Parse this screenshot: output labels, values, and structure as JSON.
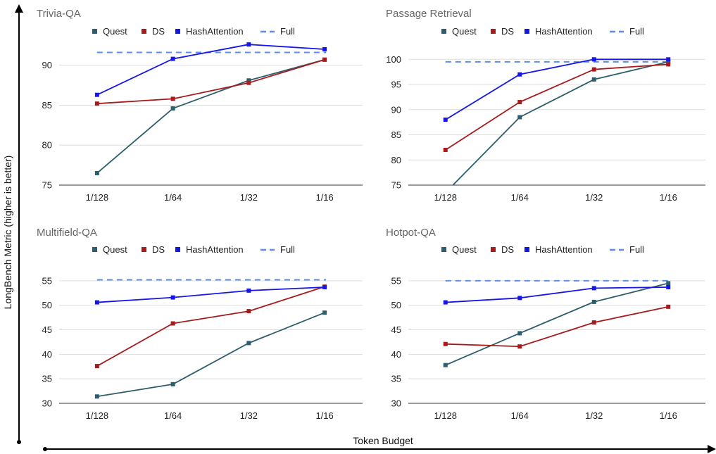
{
  "figure": {
    "ylabel": "LongBench Metric (higher is better)",
    "xlabel": "Token Budget"
  },
  "legend": [
    {
      "name": "Quest",
      "color": "#2e5e6e",
      "style": "solid"
    },
    {
      "name": "DS",
      "color": "#a61b1b",
      "style": "solid"
    },
    {
      "name": "HashAttention",
      "color": "#1616e8",
      "style": "solid"
    },
    {
      "name": "Full",
      "color": "#5b8ee6",
      "style": "dashed"
    }
  ],
  "chart_data": [
    {
      "type": "line",
      "title": "Trivia-QA",
      "categories": [
        "1/128",
        "1/64",
        "1/32",
        "1/16"
      ],
      "ylim": [
        75,
        92
      ],
      "yticks": [
        75,
        80,
        85,
        90
      ],
      "grid": true,
      "legend_position": "top",
      "series": [
        {
          "name": "Quest",
          "values": [
            76.5,
            84.6,
            88.1,
            90.7
          ]
        },
        {
          "name": "DS",
          "values": [
            85.2,
            85.8,
            87.8,
            90.7
          ]
        },
        {
          "name": "HashAttention",
          "values": [
            86.3,
            90.8,
            92.6,
            92.0
          ]
        },
        {
          "name": "Full",
          "values": [
            91.6,
            91.6,
            91.6,
            91.6
          ]
        }
      ]
    },
    {
      "type": "line",
      "title": "Passage Retrieval",
      "categories": [
        "1/128",
        "1/64",
        "1/32",
        "1/16"
      ],
      "ylim": [
        75,
        102
      ],
      "yticks": [
        75,
        80,
        85,
        90,
        95,
        100
      ],
      "grid": true,
      "legend_position": "top",
      "series": [
        {
          "name": "Quest",
          "values": [
            73.5,
            88.5,
            96.0,
            99.5
          ]
        },
        {
          "name": "DS",
          "values": [
            82.0,
            91.5,
            98.0,
            99.0
          ]
        },
        {
          "name": "HashAttention",
          "values": [
            88.0,
            97.0,
            100.0,
            100.0
          ]
        },
        {
          "name": "Full",
          "values": [
            99.5,
            99.5,
            99.5,
            99.5
          ]
        }
      ]
    },
    {
      "type": "line",
      "title": "Multifield-QA",
      "categories": [
        "1/128",
        "1/64",
        "1/32",
        "1/16"
      ],
      "ylim": [
        30,
        57
      ],
      "yticks": [
        30,
        35,
        40,
        45,
        50,
        55
      ],
      "grid": true,
      "legend_position": "top",
      "series": [
        {
          "name": "Quest",
          "values": [
            31.4,
            33.9,
            42.3,
            48.5
          ]
        },
        {
          "name": "DS",
          "values": [
            37.6,
            46.3,
            48.8,
            53.8
          ]
        },
        {
          "name": "HashAttention",
          "values": [
            50.6,
            51.6,
            53.0,
            53.7
          ]
        },
        {
          "name": "Full",
          "values": [
            55.2,
            55.2,
            55.2,
            55.2
          ]
        }
      ]
    },
    {
      "type": "line",
      "title": "Hotpot-QA",
      "categories": [
        "1/128",
        "1/64",
        "1/32",
        "1/16"
      ],
      "ylim": [
        30,
        57
      ],
      "yticks": [
        30,
        35,
        40,
        45,
        50,
        55
      ],
      "grid": true,
      "legend_position": "top",
      "series": [
        {
          "name": "Quest",
          "values": [
            37.8,
            44.3,
            50.7,
            54.5
          ]
        },
        {
          "name": "DS",
          "values": [
            42.1,
            41.6,
            46.5,
            49.7
          ]
        },
        {
          "name": "HashAttention",
          "values": [
            50.6,
            51.5,
            53.5,
            53.7
          ]
        },
        {
          "name": "Full",
          "values": [
            55.0,
            55.0,
            55.0,
            55.0
          ]
        }
      ]
    }
  ]
}
